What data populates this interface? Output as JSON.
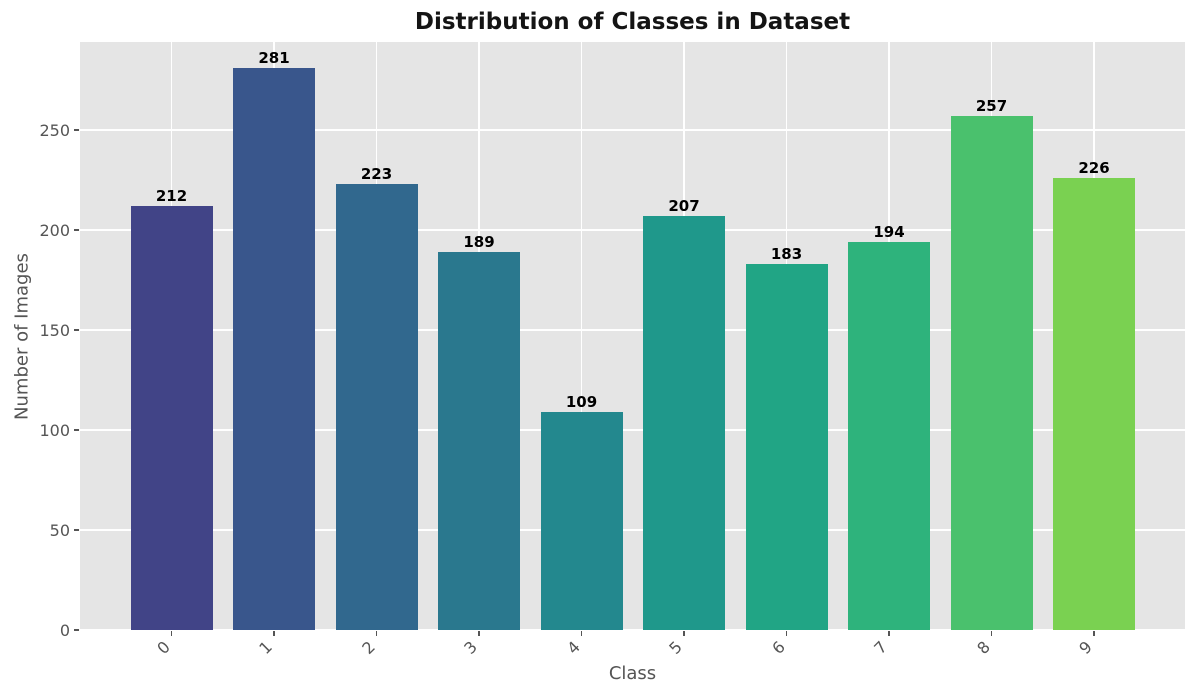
{
  "chart_data": {
    "type": "bar",
    "title": "Distribution of Classes in Dataset",
    "xlabel": "Class",
    "ylabel": "Number of Images",
    "categories": [
      "0",
      "1",
      "2",
      "3",
      "4",
      "5",
      "6",
      "7",
      "8",
      "9"
    ],
    "values": [
      212,
      281,
      223,
      189,
      109,
      207,
      183,
      194,
      257,
      226
    ],
    "value_labels": [
      "212",
      "281",
      "223",
      "189",
      "109",
      "207",
      "183",
      "194",
      "257",
      "226"
    ],
    "bar_colors": [
      "#414487",
      "#39568c",
      "#31688e",
      "#2a788e",
      "#23888e",
      "#1f988b",
      "#21a585",
      "#2eb37c",
      "#4ac16d",
      "#7ad151"
    ],
    "yticks": [
      0,
      50,
      100,
      150,
      200,
      250
    ],
    "ylim": [
      0,
      294
    ],
    "grid": "both",
    "legend": "none",
    "plot_background": "#e5e5e5",
    "grid_color": "#ffffff",
    "tick_label_color": "#555555",
    "axis_label_color": "#555555",
    "title_color": "#141414",
    "value_label_color": "#000000"
  }
}
